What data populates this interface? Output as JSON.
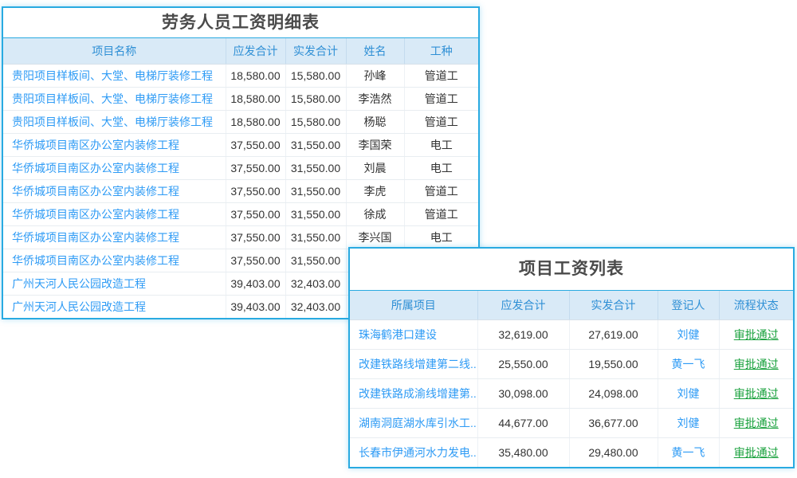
{
  "colors": {
    "panel_border": "#29aae1",
    "header_background": "#d9eaf7",
    "header_text": "#2e8fd5",
    "link_blue": "#2e9bf5",
    "status_green": "#18a13c",
    "title_text": "#4a4a4a",
    "body_text": "#333333"
  },
  "labor_table": {
    "title": "劳务人员工资明细表",
    "columns": [
      "项目名称",
      "应发合计",
      "实发合计",
      "姓名",
      "工种"
    ],
    "rows": [
      {
        "project": "贵阳项目样板间、大堂、电梯厅装修工程",
        "payable": "18,580.00",
        "paid": "15,580.00",
        "name": "孙峰",
        "job": "管道工"
      },
      {
        "project": "贵阳项目样板间、大堂、电梯厅装修工程",
        "payable": "18,580.00",
        "paid": "15,580.00",
        "name": "李浩然",
        "job": "管道工"
      },
      {
        "project": "贵阳项目样板间、大堂、电梯厅装修工程",
        "payable": "18,580.00",
        "paid": "15,580.00",
        "name": "杨聪",
        "job": "管道工"
      },
      {
        "project": "华侨城项目南区办公室内装修工程",
        "payable": "37,550.00",
        "paid": "31,550.00",
        "name": "李国荣",
        "job": "电工"
      },
      {
        "project": "华侨城项目南区办公室内装修工程",
        "payable": "37,550.00",
        "paid": "31,550.00",
        "name": "刘晨",
        "job": "电工"
      },
      {
        "project": "华侨城项目南区办公室内装修工程",
        "payable": "37,550.00",
        "paid": "31,550.00",
        "name": "李虎",
        "job": "管道工"
      },
      {
        "project": "华侨城项目南区办公室内装修工程",
        "payable": "37,550.00",
        "paid": "31,550.00",
        "name": "徐成",
        "job": "管道工"
      },
      {
        "project": "华侨城项目南区办公室内装修工程",
        "payable": "37,550.00",
        "paid": "31,550.00",
        "name": "李兴国",
        "job": "电工"
      },
      {
        "project": "华侨城项目南区办公室内装修工程",
        "payable": "37,550.00",
        "paid": "31,550.00",
        "name": "",
        "job": ""
      },
      {
        "project": "广州天河人民公园改造工程",
        "payable": "39,403.00",
        "paid": "32,403.00",
        "name": "",
        "job": ""
      },
      {
        "project": "广州天河人民公园改造工程",
        "payable": "39,403.00",
        "paid": "32,403.00",
        "name": "",
        "job": ""
      }
    ]
  },
  "project_table": {
    "title": "项目工资列表",
    "columns": [
      "所属项目",
      "应发合计",
      "实发合计",
      "登记人",
      "流程状态"
    ],
    "rows": [
      {
        "project": "珠海鹤港口建设",
        "payable": "32,619.00",
        "paid": "27,619.00",
        "registrant": "刘健",
        "status": "审批通过"
      },
      {
        "project": "改建铁路线增建第二线...",
        "payable": "25,550.00",
        "paid": "19,550.00",
        "registrant": "黄一飞",
        "status": "审批通过"
      },
      {
        "project": "改建铁路成渝线增建第...",
        "payable": "30,098.00",
        "paid": "24,098.00",
        "registrant": "刘健",
        "status": "审批通过"
      },
      {
        "project": "湖南洞庭湖水库引水工...",
        "payable": "44,677.00",
        "paid": "36,677.00",
        "registrant": "刘健",
        "status": "审批通过"
      },
      {
        "project": "长春市伊通河水力发电...",
        "payable": "35,480.00",
        "paid": "29,480.00",
        "registrant": "黄一飞",
        "status": "审批通过"
      }
    ]
  }
}
